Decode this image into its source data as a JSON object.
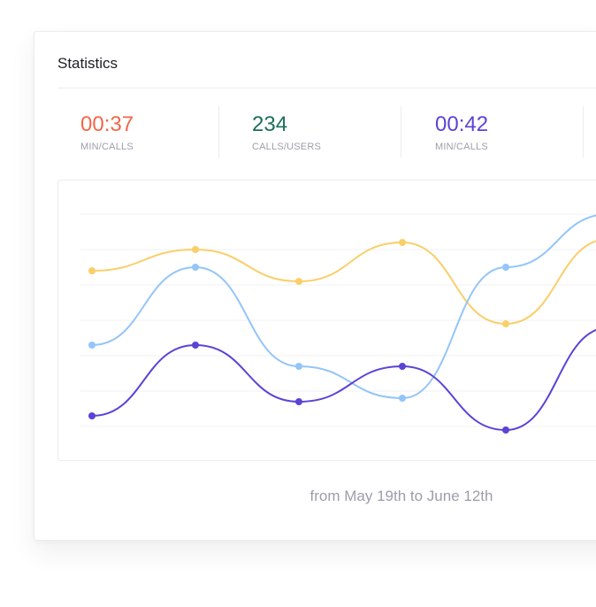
{
  "card": {
    "title": "Statistics"
  },
  "stats": [
    {
      "value": "00:37",
      "label": "MIN/CALLS",
      "color": "#f2674a"
    },
    {
      "value": "234",
      "label": "CALLS/USERS",
      "color": "#1d6f5a"
    },
    {
      "value": "00:42",
      "label": "MIN/CALLS",
      "color": "#5b43d6"
    }
  ],
  "chart_data": {
    "type": "line",
    "smooth": true,
    "markers": true,
    "grid": true,
    "legend": "none",
    "x": [
      1,
      2,
      3,
      4,
      5,
      6
    ],
    "ylim": [
      0,
      6
    ],
    "series": [
      {
        "color": "#f9cf6a",
        "values": [
          4.4,
          5.0,
          4.1,
          5.2,
          2.9,
          5.3
        ]
      },
      {
        "color": "#94c5f8",
        "values": [
          2.3,
          4.5,
          1.7,
          0.8,
          4.5,
          6.0
        ]
      },
      {
        "color": "#5b43d6",
        "values": [
          0.3,
          2.3,
          0.7,
          1.7,
          -0.1,
          2.8
        ]
      }
    ]
  },
  "footer": {
    "range_text": "from May 19th to June 12th"
  }
}
